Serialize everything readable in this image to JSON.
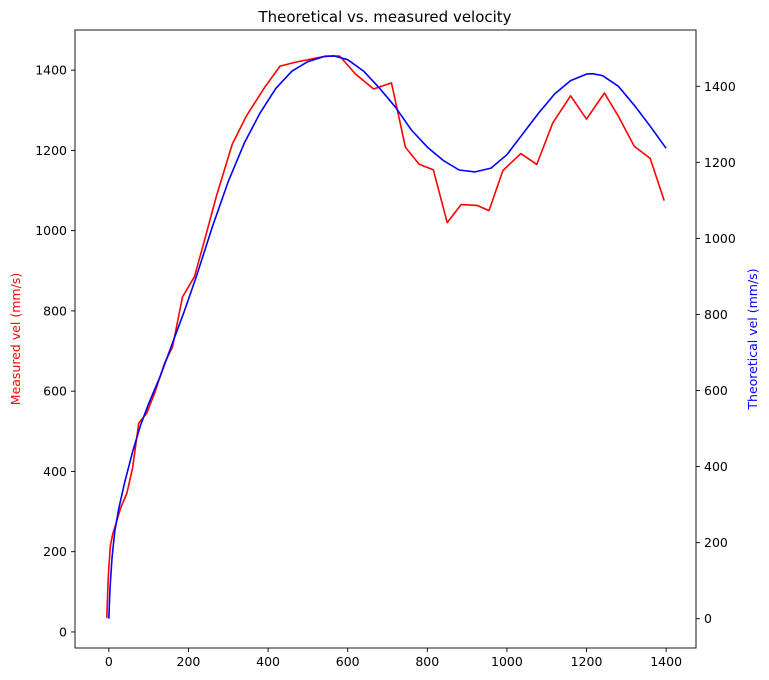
{
  "chart_data": {
    "type": "line",
    "title": "Theoretical vs. measured velocity",
    "xlabel": "",
    "xlim": [
      -85,
      1475
    ],
    "xticks": [
      0,
      200,
      400,
      600,
      800,
      1000,
      1200,
      1400
    ],
    "grid": false,
    "left_axis": {
      "label": "Measured vel (mm/s)",
      "color": "#ff0000",
      "ylim": [
        -40,
        1500
      ],
      "ticks": [
        0,
        200,
        400,
        600,
        800,
        1000,
        1200,
        1400
      ]
    },
    "right_axis": {
      "label": "Theoretical vel (mm/s)",
      "color": "#0000ff",
      "ylim": [
        -77,
        1548
      ],
      "ticks": [
        0,
        200,
        400,
        600,
        800,
        1000,
        1200,
        1400
      ]
    },
    "series": [
      {
        "axis": "left",
        "color": "#ff0000",
        "x": [
          -5,
          -2,
          0,
          4,
          10,
          18,
          30,
          45,
          60,
          75,
          95,
          115,
          140,
          160,
          185,
          215,
          240,
          270,
          310,
          345,
          390,
          430,
          470,
          510,
          545,
          580,
          620,
          665,
          700,
          710,
          745,
          780,
          815,
          850,
          885,
          925,
          955,
          990,
          1035,
          1075,
          1115,
          1160,
          1200,
          1245,
          1280,
          1320,
          1360,
          1395
        ],
        "values": [
          35,
          120,
          160,
          215,
          245,
          270,
          310,
          345,
          410,
          520,
          545,
          595,
          670,
          710,
          835,
          885,
          975,
          1085,
          1215,
          1285,
          1355,
          1410,
          1420,
          1428,
          1435,
          1435,
          1390,
          1353,
          1365,
          1368,
          1208,
          1165,
          1152,
          1020,
          1065,
          1063,
          1050,
          1150,
          1192,
          1165,
          1268,
          1336,
          1278,
          1343,
          1285,
          1210,
          1180,
          1075
        ]
      },
      {
        "axis": "right",
        "color": "#0000ff",
        "x": [
          0,
          3,
          8,
          15,
          25,
          40,
          60,
          80,
          100,
          130,
          160,
          190,
          220,
          260,
          300,
          340,
          380,
          420,
          460,
          500,
          540,
          565,
          600,
          640,
          680,
          720,
          760,
          800,
          840,
          880,
          920,
          960,
          1000,
          1040,
          1080,
          1120,
          1160,
          1200,
          1215,
          1240,
          1280,
          1320,
          1360,
          1400
        ],
        "values": [
          0,
          80,
          160,
          230,
          290,
          360,
          440,
          510,
          565,
          640,
          725,
          810,
          900,
          1030,
          1150,
          1250,
          1330,
          1395,
          1440,
          1465,
          1478,
          1480,
          1470,
          1440,
          1395,
          1345,
          1285,
          1240,
          1205,
          1180,
          1175,
          1185,
          1220,
          1275,
          1330,
          1380,
          1415,
          1432,
          1433,
          1428,
          1400,
          1350,
          1295,
          1237
        ]
      }
    ]
  }
}
